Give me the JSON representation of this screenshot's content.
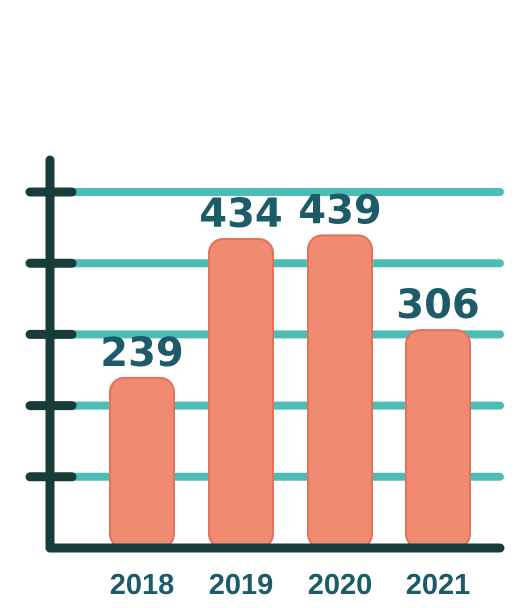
{
  "chart_data": {
    "type": "bar",
    "categories": [
      "2018",
      "2019",
      "2020",
      "2021"
    ],
    "values": [
      239,
      434,
      439,
      306
    ],
    "value_labels": [
      "239",
      "434",
      "439",
      "306"
    ],
    "title": "",
    "xlabel": "",
    "ylabel": "",
    "ylim": [
      0,
      500
    ],
    "gridlines": 5,
    "grid": true,
    "legend": "none"
  },
  "colors": {
    "bar": "#f08a70",
    "bar_edge": "#e27259",
    "grid": "#4bbdb6",
    "axis": "#173c3a",
    "value_text": "#1c5b67",
    "category_text": "#1c5b67"
  }
}
